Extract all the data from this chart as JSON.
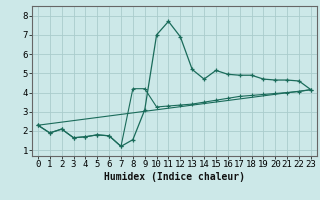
{
  "title": "",
  "xlabel": "Humidex (Indice chaleur)",
  "bg_color": "#cce8e8",
  "grid_color": "#aacccc",
  "line_color": "#1a6b5a",
  "xlim": [
    -0.5,
    23.5
  ],
  "ylim": [
    0.7,
    8.5
  ],
  "xticks": [
    0,
    1,
    2,
    3,
    4,
    5,
    6,
    7,
    8,
    9,
    10,
    11,
    12,
    13,
    14,
    15,
    16,
    17,
    18,
    19,
    20,
    21,
    22,
    23
  ],
  "yticks": [
    1,
    2,
    3,
    4,
    5,
    6,
    7,
    8
  ],
  "line1_x": [
    0,
    1,
    2,
    3,
    4,
    5,
    6,
    7,
    8,
    9,
    10,
    11,
    12,
    13,
    14,
    15,
    16,
    17,
    18,
    19,
    20,
    21,
    22,
    23
  ],
  "line1_y": [
    2.3,
    1.9,
    2.1,
    1.65,
    1.7,
    1.8,
    1.75,
    1.2,
    1.55,
    3.1,
    7.0,
    7.7,
    6.9,
    5.2,
    4.7,
    5.15,
    4.95,
    4.9,
    4.9,
    4.7,
    4.65,
    4.65,
    4.6,
    4.15
  ],
  "line2_x": [
    0,
    1,
    2,
    3,
    4,
    5,
    6,
    7,
    8,
    9,
    10,
    11,
    12,
    13,
    14,
    15,
    16,
    17,
    18,
    19,
    20,
    21,
    22,
    23
  ],
  "line2_y": [
    2.3,
    1.9,
    2.1,
    1.65,
    1.7,
    1.8,
    1.75,
    1.2,
    4.2,
    4.2,
    3.25,
    3.3,
    3.35,
    3.4,
    3.5,
    3.6,
    3.7,
    3.8,
    3.85,
    3.9,
    3.95,
    4.0,
    4.05,
    4.15
  ],
  "line3_x": [
    0,
    23
  ],
  "line3_y": [
    2.3,
    4.15
  ],
  "fontsize_xlabel": 7.0,
  "tick_fontsize": 6.5
}
